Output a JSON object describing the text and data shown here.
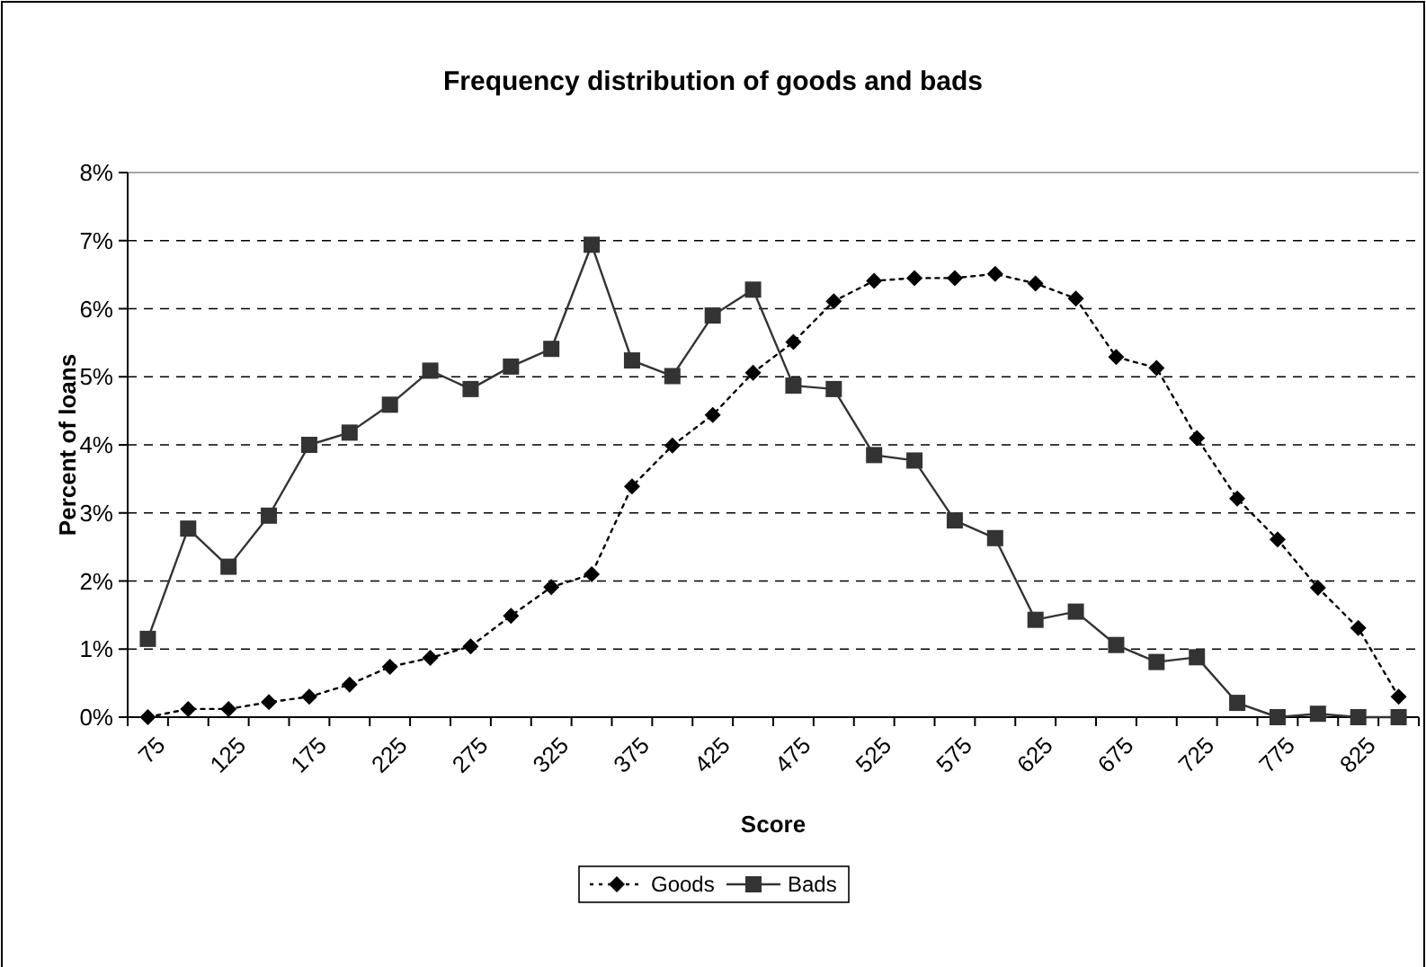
{
  "chart_data": {
    "type": "line",
    "title": "Frequency distribution of goods and bads",
    "xlabel": "Score",
    "ylabel": "Percent of loans",
    "categories": [
      "75",
      null,
      "125",
      null,
      "175",
      null,
      "225",
      null,
      "275",
      null,
      "325",
      null,
      "375",
      null,
      "425",
      null,
      "475",
      null,
      "525",
      null,
      "575",
      null,
      "625",
      null,
      "675",
      null,
      "725",
      null,
      "775",
      null,
      "825",
      null
    ],
    "series": [
      {
        "name": "Goods",
        "color": "#000000",
        "line_style": "dotted",
        "marker": "diamond",
        "values": [
          0,
          0.12,
          0.12,
          0.22,
          0.3,
          0.48,
          0.74,
          0.87,
          1.04,
          1.49,
          1.91,
          2.1,
          3.39,
          3.99,
          4.44,
          5.06,
          5.51,
          6.11,
          6.41,
          6.45,
          6.45,
          6.51,
          6.37,
          6.15,
          5.29,
          5.13,
          4.1,
          3.21,
          2.61,
          1.9,
          1.31,
          0.3
        ]
      },
      {
        "name": "Bads",
        "color": "#333333",
        "line_style": "solid",
        "marker": "square",
        "values": [
          1.15,
          2.77,
          2.21,
          2.96,
          4.0,
          4.18,
          4.59,
          5.09,
          4.82,
          5.15,
          5.41,
          6.94,
          5.24,
          5.01,
          5.9,
          6.28,
          4.87,
          4.82,
          3.85,
          3.77,
          2.89,
          2.63,
          1.43,
          1.55,
          1.06,
          0.81,
          0.88,
          0.21,
          0,
          0.05,
          0,
          0
        ]
      }
    ],
    "ylim": [
      0,
      8
    ],
    "yticks": [
      {
        "value": 0,
        "label": "0%"
      },
      {
        "value": 1,
        "label": "1%"
      },
      {
        "value": 2,
        "label": "2%"
      },
      {
        "value": 3,
        "label": "3%"
      },
      {
        "value": 4,
        "label": "4%"
      },
      {
        "value": 5,
        "label": "5%"
      },
      {
        "value": 6,
        "label": "6%"
      },
      {
        "value": 7,
        "label": "7%"
      },
      {
        "value": 8,
        "label": "8%"
      }
    ],
    "grid": "y",
    "legend": "bottom"
  }
}
